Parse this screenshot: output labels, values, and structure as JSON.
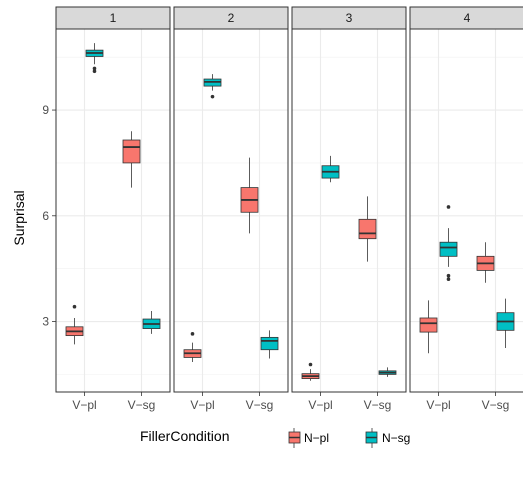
{
  "chart_data": {
    "type": "boxplot",
    "ylabel": "Surprisal",
    "y_ticks": [
      3,
      6,
      9
    ],
    "ylim": [
      1.0,
      11.3
    ],
    "categories": [
      "V−pl",
      "V−sg"
    ],
    "grid": true,
    "legend": {
      "title": "FillerCondition",
      "position": "bottom",
      "entries": [
        {
          "name": "N−pl",
          "color": "#F8766D"
        },
        {
          "name": "N−sg",
          "color": "#00BFC4"
        }
      ]
    },
    "panels": [
      {
        "label": "1",
        "boxes": [
          {
            "category": "V−pl",
            "group": "N−pl",
            "min": 2.35,
            "q1": 2.6,
            "median": 2.72,
            "q3": 2.85,
            "max": 3.1,
            "outliers": [
              3.42
            ]
          },
          {
            "category": "V−pl",
            "group": "N−sg",
            "min": 10.3,
            "q1": 10.52,
            "median": 10.62,
            "q3": 10.7,
            "max": 10.9,
            "outliers": [
              10.1,
              10.18
            ]
          },
          {
            "category": "V−sg",
            "group": "N−pl",
            "min": 6.8,
            "q1": 7.5,
            "median": 7.95,
            "q3": 8.15,
            "max": 8.4,
            "outliers": []
          },
          {
            "category": "V−sg",
            "group": "N−sg",
            "min": 2.65,
            "q1": 2.8,
            "median": 2.93,
            "q3": 3.07,
            "max": 3.3,
            "outliers": []
          }
        ]
      },
      {
        "label": "2",
        "boxes": [
          {
            "category": "V−pl",
            "group": "N−pl",
            "min": 1.85,
            "q1": 1.98,
            "median": 2.1,
            "q3": 2.2,
            "max": 2.4,
            "outliers": [
              2.65
            ]
          },
          {
            "category": "V−pl",
            "group": "N−sg",
            "min": 9.55,
            "q1": 9.68,
            "median": 9.8,
            "q3": 9.88,
            "max": 10.02,
            "outliers": [
              9.38
            ]
          },
          {
            "category": "V−sg",
            "group": "N−pl",
            "min": 5.5,
            "q1": 6.1,
            "median": 6.45,
            "q3": 6.8,
            "max": 7.65,
            "outliers": []
          },
          {
            "category": "V−sg",
            "group": "N−sg",
            "min": 1.95,
            "q1": 2.2,
            "median": 2.45,
            "q3": 2.55,
            "max": 2.75,
            "outliers": []
          }
        ]
      },
      {
        "label": "3",
        "boxes": [
          {
            "category": "V−pl",
            "group": "N−pl",
            "min": 1.32,
            "q1": 1.38,
            "median": 1.45,
            "q3": 1.52,
            "max": 1.65,
            "outliers": [
              1.78
            ]
          },
          {
            "category": "V−pl",
            "group": "N−sg",
            "min": 6.95,
            "q1": 7.07,
            "median": 7.25,
            "q3": 7.42,
            "max": 7.7,
            "outliers": []
          },
          {
            "category": "V−sg",
            "group": "N−pl",
            "min": 4.7,
            "q1": 5.35,
            "median": 5.5,
            "q3": 5.9,
            "max": 6.55,
            "outliers": []
          },
          {
            "category": "V−sg",
            "group": "N−sg",
            "min": 1.43,
            "q1": 1.5,
            "median": 1.55,
            "q3": 1.6,
            "max": 1.7,
            "outliers": []
          }
        ]
      },
      {
        "label": "4",
        "boxes": [
          {
            "category": "V−pl",
            "group": "N−pl",
            "min": 2.1,
            "q1": 2.7,
            "median": 2.95,
            "q3": 3.1,
            "max": 3.6,
            "outliers": []
          },
          {
            "category": "V−pl",
            "group": "N−sg",
            "min": 4.55,
            "q1": 4.85,
            "median": 5.1,
            "q3": 5.25,
            "max": 5.65,
            "outliers": [
              4.2,
              4.3,
              6.25
            ]
          },
          {
            "category": "V−sg",
            "group": "N−pl",
            "min": 4.1,
            "q1": 4.45,
            "median": 4.65,
            "q3": 4.85,
            "max": 5.25,
            "outliers": []
          },
          {
            "category": "V−sg",
            "group": "N−sg",
            "min": 2.25,
            "q1": 2.75,
            "median": 3.0,
            "q3": 3.25,
            "max": 3.65,
            "outliers": []
          }
        ]
      }
    ]
  }
}
